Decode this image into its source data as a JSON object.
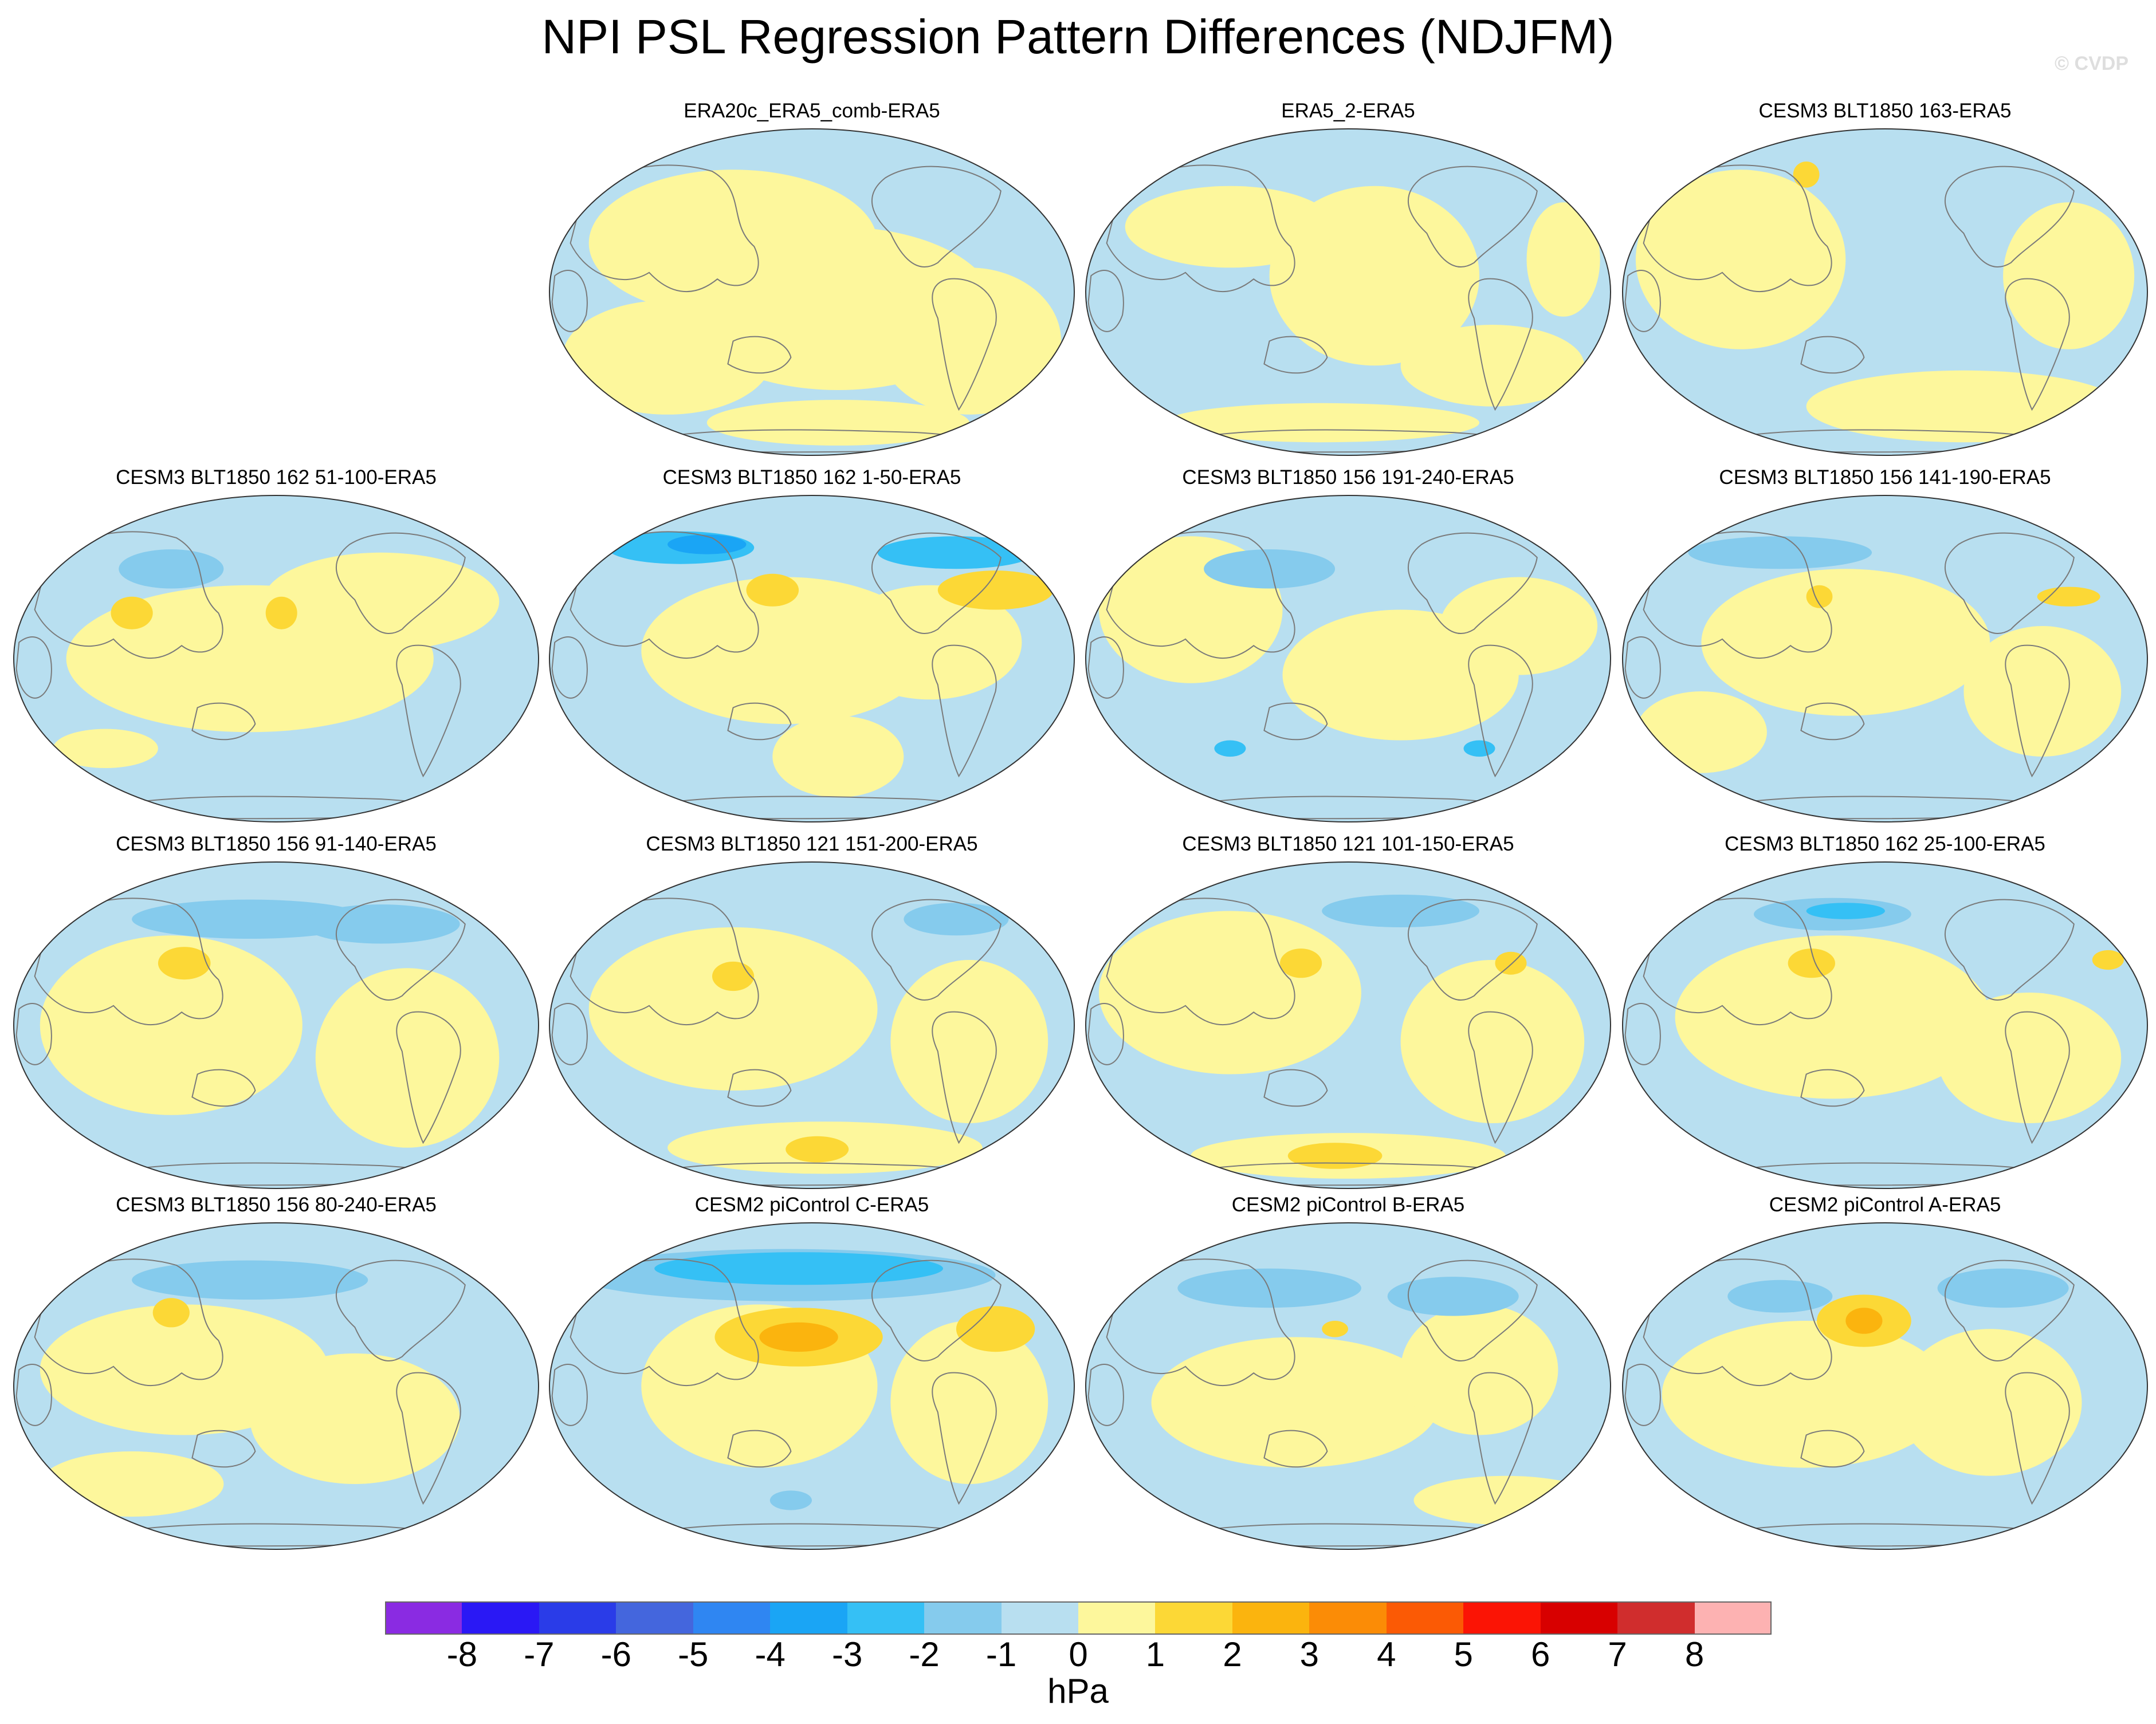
{
  "title": "NPI PSL Regression Pattern Differences (NDJFM)",
  "watermark": "© CVDP",
  "colors": {
    "ocean": "#b8dff0",
    "land": "#fdf79c",
    "coast": "#7a7a7a"
  },
  "panels": [
    {
      "title": "ERA20c_ERA5_comb-ERA5",
      "row": 0,
      "col": 1,
      "pattern": 0
    },
    {
      "title": "ERA5_2-ERA5",
      "row": 0,
      "col": 2,
      "pattern": 1
    },
    {
      "title": "CESM3 BLT1850 163-ERA5",
      "row": 0,
      "col": 3,
      "pattern": 2
    },
    {
      "title": "CESM3 BLT1850 162 51-100-ERA5",
      "row": 1,
      "col": 0,
      "pattern": 3
    },
    {
      "title": "CESM3 BLT1850 162 1-50-ERA5",
      "row": 1,
      "col": 1,
      "pattern": 4
    },
    {
      "title": "CESM3 BLT1850 156 191-240-ERA5",
      "row": 1,
      "col": 2,
      "pattern": 5
    },
    {
      "title": "CESM3 BLT1850 156 141-190-ERA5",
      "row": 1,
      "col": 3,
      "pattern": 6
    },
    {
      "title": "CESM3 BLT1850 156 91-140-ERA5",
      "row": 2,
      "col": 0,
      "pattern": 7
    },
    {
      "title": "CESM3 BLT1850 121 151-200-ERA5",
      "row": 2,
      "col": 1,
      "pattern": 8
    },
    {
      "title": "CESM3 BLT1850 121 101-150-ERA5",
      "row": 2,
      "col": 2,
      "pattern": 9
    },
    {
      "title": "CESM3 BLT1850 162 25-100-ERA5",
      "row": 2,
      "col": 3,
      "pattern": 10
    },
    {
      "title": "CESM3 BLT1850 156 80-240-ERA5",
      "row": 3,
      "col": 0,
      "pattern": 11
    },
    {
      "title": "CESM2 piControl C-ERA5",
      "row": 3,
      "col": 1,
      "pattern": 12
    },
    {
      "title": "CESM2 piControl B-ERA5",
      "row": 3,
      "col": 2,
      "pattern": 13
    },
    {
      "title": "CESM2 piControl A-ERA5",
      "row": 3,
      "col": 3,
      "pattern": 14
    }
  ],
  "colorbar": {
    "colors": [
      "#8a2be2",
      "#2a18f5",
      "#2a3ce8",
      "#4466dd",
      "#2f86f2",
      "#1aa5f5",
      "#35c0f5",
      "#85cbed",
      "#b8dff0",
      "#fdf79c",
      "#fcd836",
      "#fbb40e",
      "#fb8c06",
      "#fb5a05",
      "#fb1405",
      "#d80000",
      "#d02d2d",
      "#fdb2b2"
    ],
    "labels": [
      "-8",
      "-7",
      "-6",
      "-5",
      "-4",
      "-3",
      "-2",
      "-1",
      "0",
      "1",
      "2",
      "3",
      "4",
      "5",
      "6",
      "7",
      "8"
    ],
    "units": "hPa"
  }
}
